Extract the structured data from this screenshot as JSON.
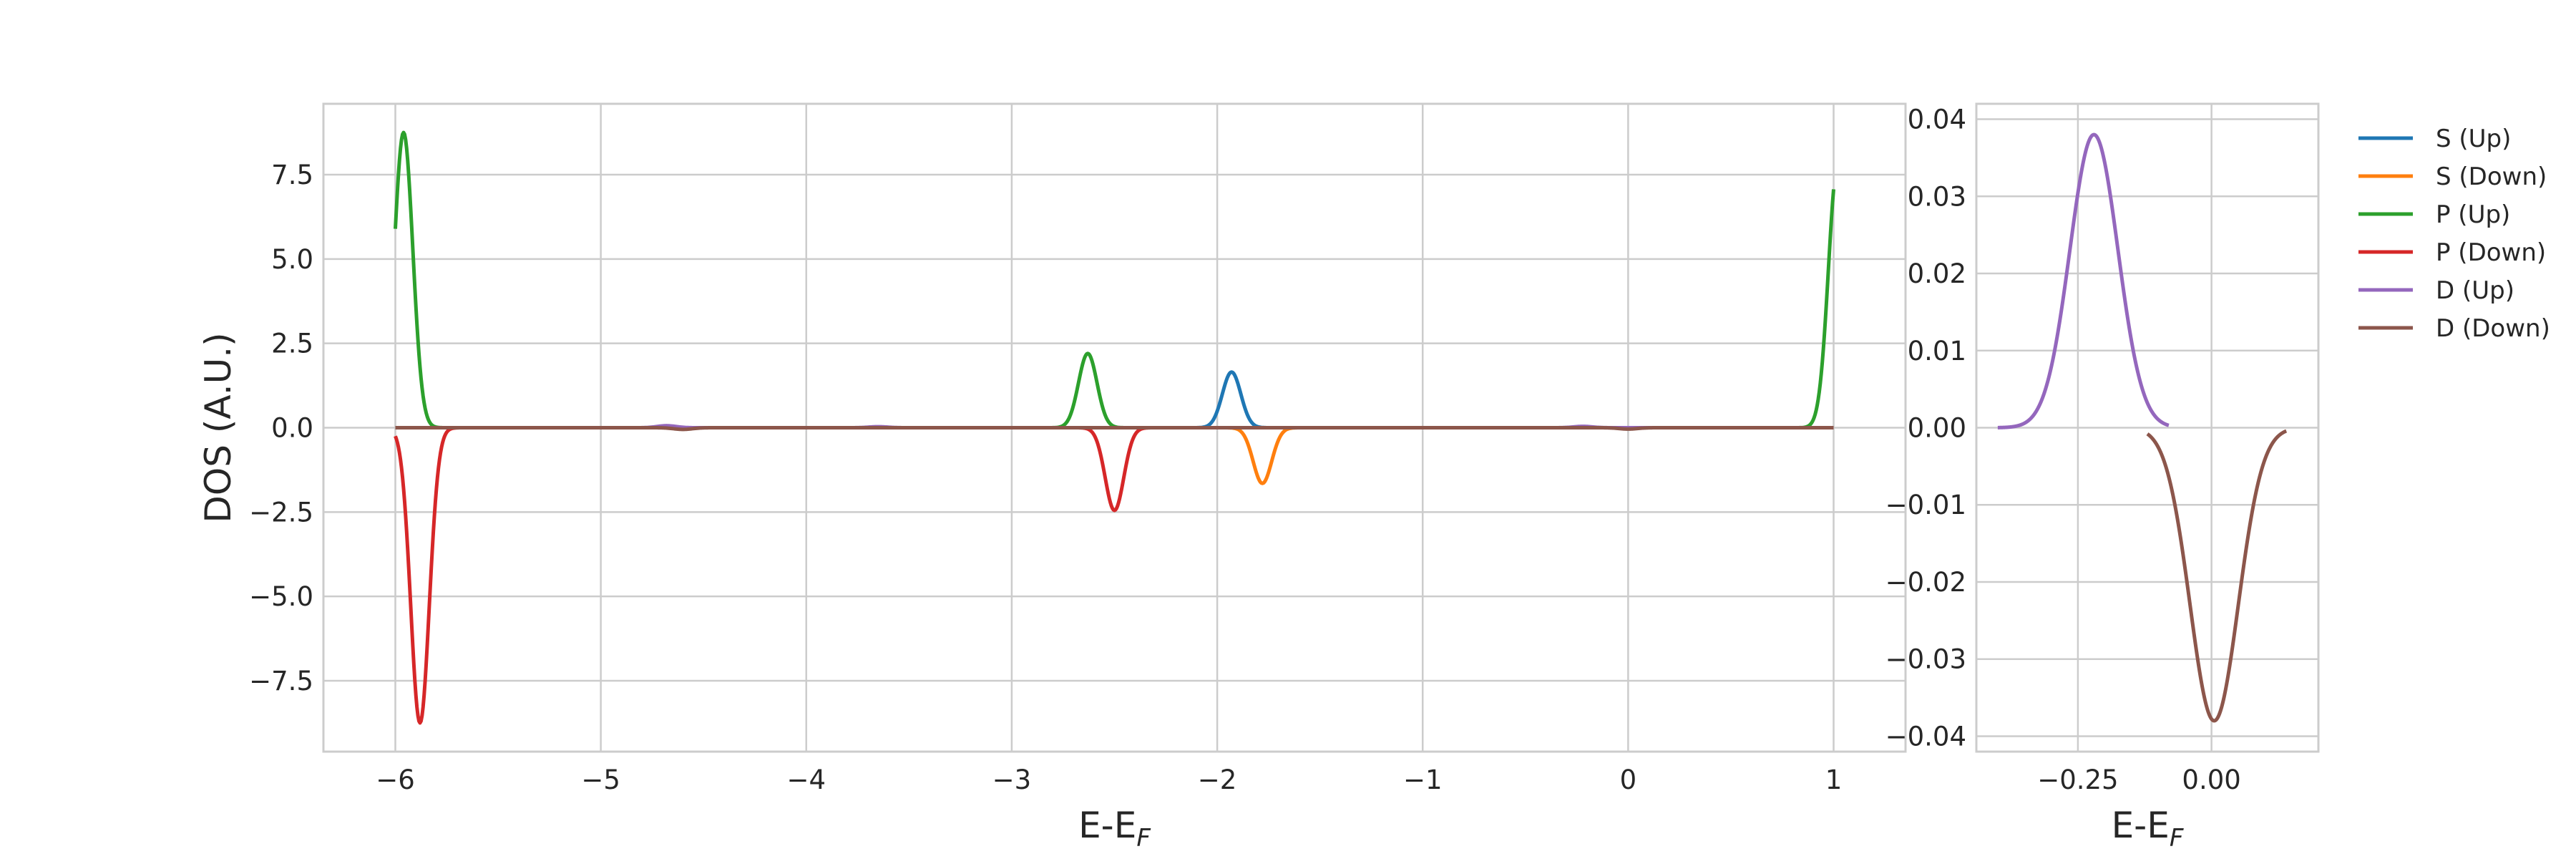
{
  "chart_data": [
    {
      "type": "line",
      "panel": "main",
      "xlabel_main": "E-E",
      "xlabel_sub": "F",
      "ylabel": "DOS (A.U.)",
      "xlim": [
        -6.35,
        1.35
      ],
      "ylim": [
        -9.6,
        9.6
      ],
      "xticks": [
        -6,
        -5,
        -4,
        -3,
        -2,
        -1,
        0,
        1
      ],
      "xticklabels": [
        "−6",
        "−5",
        "−4",
        "−3",
        "−2",
        "−1",
        "0",
        "1"
      ],
      "yticks": [
        -7.5,
        -5.0,
        -2.5,
        0.0,
        2.5,
        5.0,
        7.5
      ],
      "yticklabels": [
        "−7.5",
        "−5.0",
        "−2.5",
        "0.0",
        "2.5",
        "5.0",
        "7.5"
      ],
      "grid": true,
      "x_range_plotted": [
        -6.0,
        1.0
      ],
      "series": [
        {
          "name": "S (Up)",
          "color": "#1f77b4",
          "peaks": [
            {
              "center": -1.93,
              "height": 1.65,
              "width": 0.045
            }
          ]
        },
        {
          "name": "S (Down)",
          "color": "#ff7f0e",
          "peaks": [
            {
              "center": -1.78,
              "height": -1.65,
              "width": 0.045
            }
          ]
        },
        {
          "name": "P (Up)",
          "color": "#2ca02c",
          "peaks": [
            {
              "center": -5.96,
              "height": 8.75,
              "width": 0.045
            },
            {
              "center": -2.63,
              "height": 2.2,
              "width": 0.045
            },
            {
              "center": 1.02,
              "height": 7.8,
              "width": 0.045
            }
          ]
        },
        {
          "name": "P (Down)",
          "color": "#d62728",
          "peaks": [
            {
              "center": -5.88,
              "height": -8.75,
              "width": 0.045
            },
            {
              "center": -2.5,
              "height": -2.45,
              "width": 0.045
            }
          ]
        },
        {
          "name": "D (Up)",
          "color": "#9467bd",
          "peaks": [
            {
              "center": -4.68,
              "height": 0.06,
              "width": 0.045
            },
            {
              "center": -3.65,
              "height": 0.03,
              "width": 0.045
            },
            {
              "center": -0.22,
              "height": 0.04,
              "width": 0.045
            }
          ]
        },
        {
          "name": "D (Down)",
          "color": "#8c564b",
          "peaks": [
            {
              "center": -4.6,
              "height": -0.05,
              "width": 0.045
            },
            {
              "center": 0.0,
              "height": -0.04,
              "width": 0.045
            }
          ]
        }
      ]
    },
    {
      "type": "line",
      "panel": "inset",
      "xlabel_main": "E-E",
      "xlabel_sub": "F",
      "xlim": [
        -0.44,
        0.2
      ],
      "ylim": [
        -0.042,
        0.042
      ],
      "xticks": [
        -0.25,
        0.0
      ],
      "xticklabels": [
        "−0.25",
        "0.00"
      ],
      "yticks": [
        -0.04,
        -0.03,
        -0.02,
        -0.01,
        0.0,
        0.01,
        0.02,
        0.03,
        0.04
      ],
      "yticklabels": [
        "−0.04",
        "−0.03",
        "−0.02",
        "−0.01",
        "0.00",
        "0.01",
        "0.02",
        "0.03",
        "0.04"
      ],
      "grid": true,
      "series": [
        {
          "name": "D (Up)",
          "color": "#9467bd",
          "x_range": [
            -0.4,
            -0.08
          ],
          "peaks": [
            {
              "center": -0.22,
              "height": 0.038,
              "width": 0.045
            }
          ]
        },
        {
          "name": "D (Down)",
          "color": "#8c564b",
          "x_range": [
            -0.12,
            0.14
          ],
          "peaks": [
            {
              "center": 0.005,
              "height": -0.038,
              "width": 0.045
            }
          ]
        }
      ],
      "legend_position": "upper right, outside"
    }
  ],
  "legend": [
    {
      "name": "S (Up)",
      "color": "#1f77b4"
    },
    {
      "name": "S (Down)",
      "color": "#ff7f0e"
    },
    {
      "name": "P (Up)",
      "color": "#2ca02c"
    },
    {
      "name": "P (Down)",
      "color": "#d62728"
    },
    {
      "name": "D (Up)",
      "color": "#9467bd"
    },
    {
      "name": "D (Down)",
      "color": "#8c564b"
    }
  ]
}
